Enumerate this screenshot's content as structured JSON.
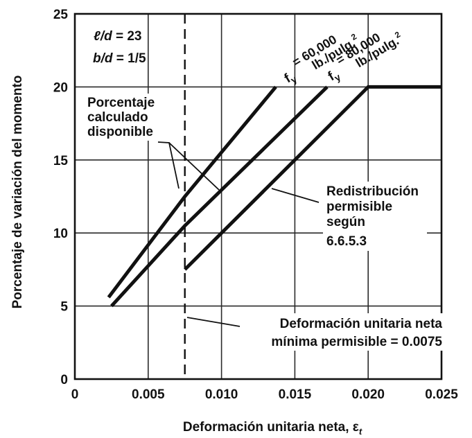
{
  "chart_data": {
    "type": "line",
    "xlabel": "Deformación unitaria neta, ε",
    "xlabel_subscript": "t",
    "ylabel": "Porcentaje de variación del momento",
    "xlim": [
      0,
      0.025
    ],
    "ylim": [
      0,
      25
    ],
    "x_ticks": [
      "0",
      "0.005",
      "0.010",
      "0.015",
      "0.020",
      "0.025"
    ],
    "y_ticks": [
      "0",
      "5",
      "10",
      "15",
      "20",
      "25"
    ],
    "grid": true,
    "series": [
      {
        "name": "fy = 60,000 lb./pulg.²",
        "x": [
          0.0023,
          0.0075,
          0.0137
        ],
        "y": [
          5.6,
          12.5,
          20.0
        ]
      },
      {
        "name": "fy = 80,000 lb./pulg.²",
        "x": [
          0.0025,
          0.0075,
          0.0172
        ],
        "y": [
          5.0,
          10.5,
          20.0
        ]
      },
      {
        "name": "Redistribución permisible según 6.6.5.3",
        "x": [
          0.0075,
          0.02,
          0.025
        ],
        "y": [
          7.5,
          20.0,
          20.0
        ]
      }
    ],
    "vertical_line": {
      "x": 0.0075,
      "style": "dashed"
    }
  },
  "labels": {
    "ld_italic": "ℓ",
    "ld_rest_letter": "/d",
    "ld_value": " = 23",
    "bd_letters": "b/d",
    "bd_value": " = 1/5",
    "fy_60_symbol": "f",
    "fy_60_sub": "y",
    "fy_60_eq": "= 60,000",
    "fy_60_unit": "lb./pulg.",
    "fy_60_sup": "2",
    "fy_80_symbol": "f",
    "fy_80_sub": "y",
    "fy_80_eq": "= 80,000",
    "fy_80_unit": "lb./pulg.",
    "fy_80_sup": "2",
    "porcentaje_line1": "Porcentaje",
    "porcentaje_line2": "calculado",
    "porcentaje_line3": "disponible",
    "redist_line1": "Redistribución",
    "redist_line2": "permisible",
    "redist_line3": "según",
    "redist_line4": "6.6.5.3",
    "deform_line1": "Deformación unitaria neta",
    "deform_line2": "mínima permisible = 0.0075"
  }
}
